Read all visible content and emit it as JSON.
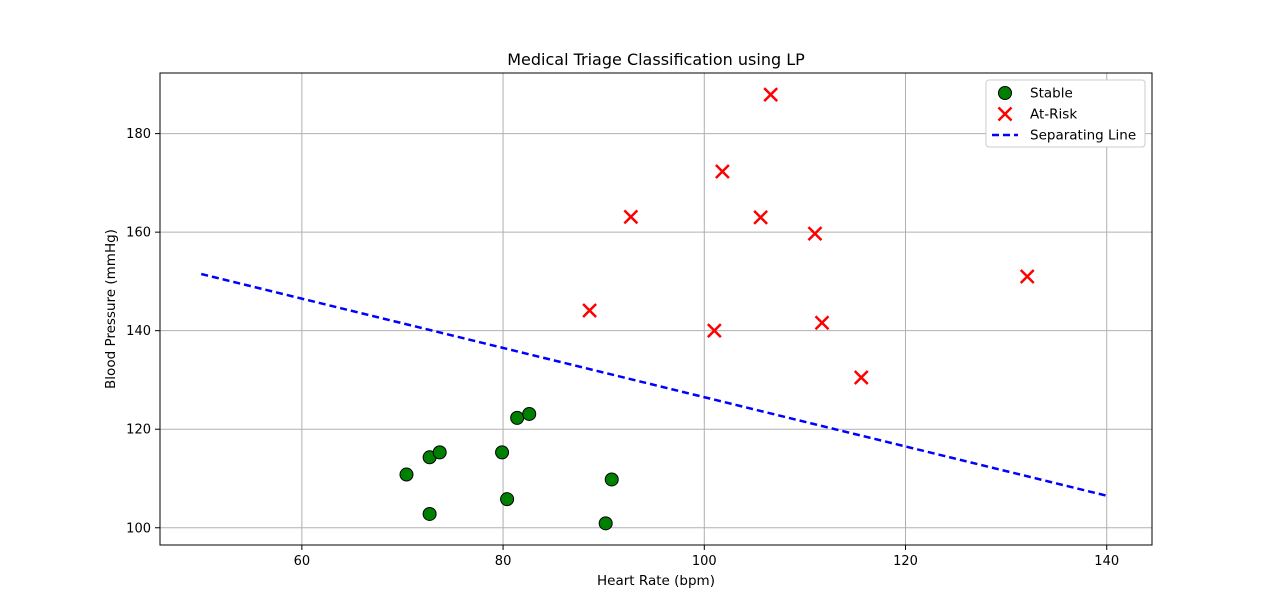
{
  "chart_data": {
    "type": "scatter",
    "title": "Medical Triage Classification using LP",
    "xlabel": "Heart Rate (bpm)",
    "ylabel": "Blood Pressure (mmHg)",
    "xlim": [
      45.9,
      144.5
    ],
    "ylim": [
      96.5,
      192.3
    ],
    "xticks": [
      60,
      80,
      100,
      120,
      140
    ],
    "yticks": [
      100,
      120,
      140,
      160,
      180
    ],
    "grid": true,
    "legend_position": "top-right",
    "series": [
      {
        "name": "Stable",
        "marker": "circle",
        "color": "#008000",
        "edge_color": "#000000",
        "points": [
          {
            "x": 70.4,
            "y": 110.8
          },
          {
            "x": 72.7,
            "y": 114.3
          },
          {
            "x": 73.7,
            "y": 115.3
          },
          {
            "x": 72.7,
            "y": 102.8
          },
          {
            "x": 79.9,
            "y": 115.3
          },
          {
            "x": 80.4,
            "y": 105.8
          },
          {
            "x": 81.4,
            "y": 122.3
          },
          {
            "x": 82.6,
            "y": 123.1
          },
          {
            "x": 90.2,
            "y": 100.9
          },
          {
            "x": 90.8,
            "y": 109.8
          }
        ]
      },
      {
        "name": "At-Risk",
        "marker": "x",
        "color": "#ff0000",
        "points": [
          {
            "x": 88.6,
            "y": 144.1
          },
          {
            "x": 92.7,
            "y": 163.1
          },
          {
            "x": 101.0,
            "y": 140.0
          },
          {
            "x": 101.8,
            "y": 172.3
          },
          {
            "x": 105.6,
            "y": 163.0
          },
          {
            "x": 106.6,
            "y": 187.9
          },
          {
            "x": 111.0,
            "y": 159.7
          },
          {
            "x": 111.7,
            "y": 141.6
          },
          {
            "x": 115.6,
            "y": 130.5
          },
          {
            "x": 132.1,
            "y": 151.0
          }
        ]
      },
      {
        "name": "Separating Line",
        "type": "line",
        "style": "dashed",
        "color": "#0000ff",
        "points": [
          {
            "x": 50,
            "y": 151.5
          },
          {
            "x": 140,
            "y": 106.5
          }
        ]
      }
    ]
  }
}
